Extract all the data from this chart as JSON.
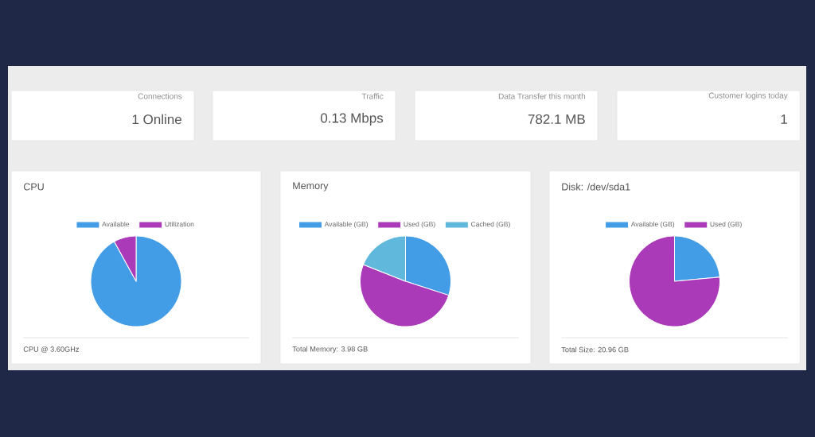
{
  "chart_data": [
    {
      "type": "other",
      "title": "Connections",
      "annotations": [
        "1 Online"
      ]
    },
    {
      "type": "other",
      "title": "Traffic",
      "annotations": [
        "0.13 Mbps"
      ]
    },
    {
      "type": "other",
      "title": "Data Transfer this month",
      "annotations": [
        "782.1 MB"
      ]
    },
    {
      "type": "other",
      "title": "Customer logins today",
      "annotations": [
        "1"
      ]
    },
    {
      "type": "pie",
      "title": "CPU",
      "categories": [
        "Available",
        "Utilization"
      ],
      "values": [
        92,
        8
      ],
      "colors": [
        "#429de6",
        "#ab3ab8"
      ],
      "legend": "top",
      "annotations": [
        "CPU @ 3.60GHz"
      ]
    },
    {
      "type": "pie",
      "title": "Memory",
      "categories": [
        "Available (GB)",
        "Used (GB)",
        "Cached (GB)"
      ],
      "values": [
        30,
        51,
        19
      ],
      "colors": [
        "#429de6",
        "#ab3ab8",
        "#60b9dd"
      ],
      "legend": "top",
      "annotations": [
        "Total Memory: 3.98 GB"
      ]
    },
    {
      "type": "pie",
      "title": "Disk: /dev/sda1",
      "categories": [
        "Available (GB)",
        "Used (GB)"
      ],
      "values": [
        23.5,
        76.5
      ],
      "colors": [
        "#429de6",
        "#ab3ab8"
      ],
      "legend": "top",
      "annotations": [
        "Total Size: 20.96 GB"
      ]
    }
  ]
}
